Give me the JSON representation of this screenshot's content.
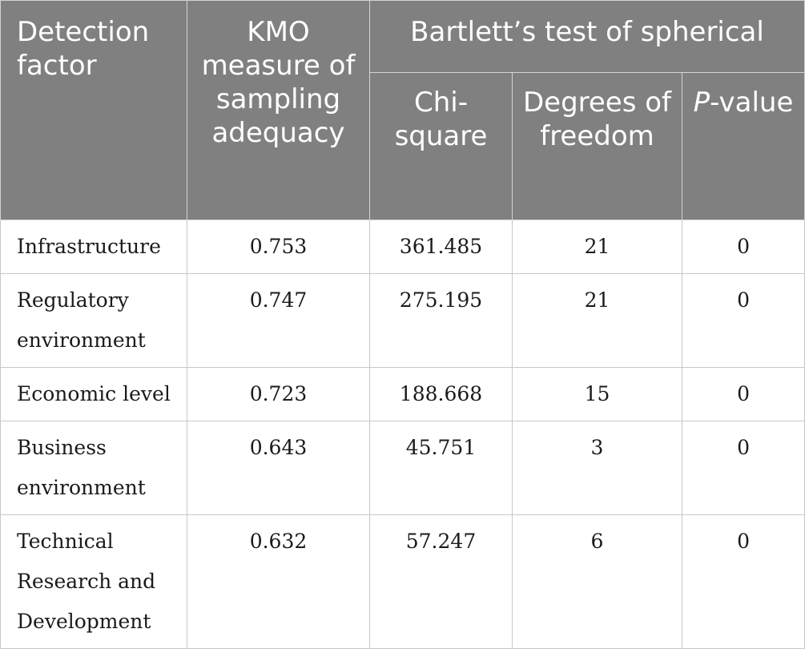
{
  "header": {
    "detection_factor": "Detection factor",
    "kmo": "KMO measure of sampling adequacy",
    "bartlett": "Bartlett’s test of spherical",
    "chi_square": "Chi-square",
    "degrees_of_freedom": "Degrees of freedom",
    "p_value_italic": "P",
    "p_value_rest": "-value"
  },
  "rows": [
    {
      "factor": "Infrastructure",
      "kmo": "0.753",
      "chi": "361.485",
      "df": "21",
      "p": "0"
    },
    {
      "factor": "Regulatory environment",
      "kmo": "0.747",
      "chi": "275.195",
      "df": "21",
      "p": "0"
    },
    {
      "factor": "Economic level",
      "kmo": "0.723",
      "chi": "188.668",
      "df": "15",
      "p": "0"
    },
    {
      "factor": "Business environment",
      "kmo": "0.643",
      "chi": "45.751",
      "df": "3",
      "p": "0"
    },
    {
      "factor": "Technical Research and Development",
      "kmo": "0.632",
      "chi": "57.247",
      "df": "6",
      "p": "0"
    }
  ],
  "colors": {
    "header_bg": "#808080",
    "header_text": "#ffffff",
    "body_text": "#1a1a1a"
  }
}
